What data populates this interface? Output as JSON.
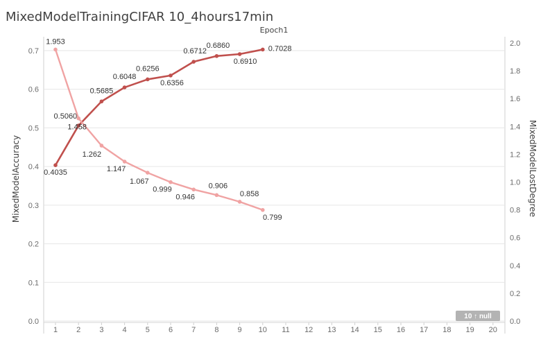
{
  "title": "MixedModelTrainingCIFAR 10_4hours17min",
  "badge": "10 ↑ null",
  "colors": {
    "accuracy": "#c0504d",
    "loss": "#f0a3a3",
    "grid": "#e6e6e6",
    "badge_bg": "#b3b3b3"
  },
  "chart_data": {
    "type": "line",
    "top_label": "Epoch1",
    "x": [
      1,
      2,
      3,
      4,
      5,
      6,
      7,
      8,
      9,
      10,
      11,
      12,
      13,
      14,
      15,
      16,
      17,
      18,
      19,
      20
    ],
    "xlim": [
      1,
      20
    ],
    "y_left": {
      "label": "MixedModelAccuracy",
      "ylim": [
        0.0,
        0.7
      ],
      "ticks": [
        "0.0",
        "0.1",
        "0.2",
        "0.3",
        "0.4",
        "0.5",
        "0.6",
        "0.7"
      ]
    },
    "y_right": {
      "label": "MixedModelLostDegree",
      "ylim": [
        0.0,
        2.0
      ],
      "ticks": [
        "0.0",
        "0.2",
        "0.4",
        "0.6",
        "0.8",
        "1.0",
        "1.2",
        "1.4",
        "1.6",
        "1.8",
        "2.0"
      ]
    },
    "grid": true,
    "series": [
      {
        "axis": "left",
        "color_key": "accuracy",
        "x": [
          1,
          2,
          3,
          4,
          5,
          6,
          7,
          8,
          9,
          10
        ],
        "values": [
          0.4035,
          0.506,
          0.5685,
          0.6048,
          0.6256,
          0.6356,
          0.6712,
          0.686,
          0.691,
          0.7028
        ],
        "labels": [
          "0.4035",
          "0.5060",
          "0.5685",
          "0.6048",
          "0.6256",
          "0.6356",
          "0.6712",
          "0.6860",
          "0.6910",
          "0.7028"
        ]
      },
      {
        "axis": "right",
        "color_key": "loss",
        "x": [
          1,
          2,
          3,
          4,
          5,
          6,
          7,
          8,
          9,
          10
        ],
        "values": [
          1.953,
          1.458,
          1.262,
          1.147,
          1.067,
          0.999,
          0.946,
          0.906,
          0.858,
          0.799
        ],
        "labels": [
          "1.953",
          "1.458",
          "1.262",
          "1.147",
          "1.067",
          "0.999",
          "0.946",
          "0.906",
          "0.858",
          "0.799"
        ]
      }
    ]
  }
}
